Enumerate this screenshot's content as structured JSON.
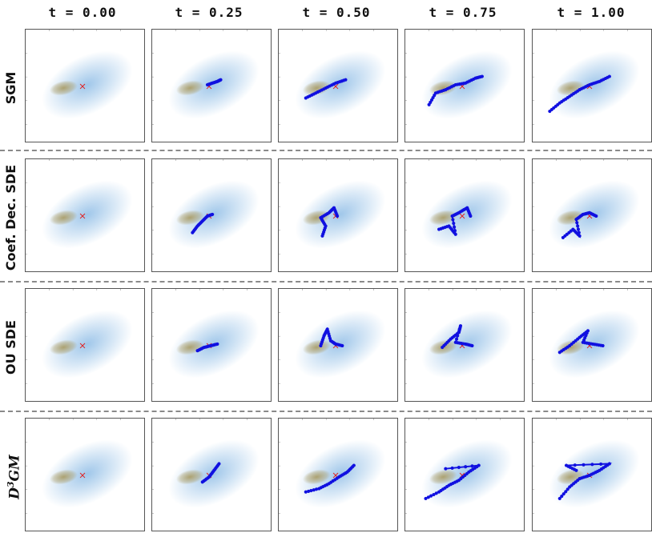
{
  "column_titles": [
    "t = 0.00",
    "t = 0.25",
    "t = 0.50",
    "t = 0.75",
    "t = 1.00"
  ],
  "row_labels": [
    "SGM",
    "Coef. Dec. SDE",
    "OU SDE"
  ],
  "last_row_label": {
    "base": "D",
    "sup": "3",
    "rest": "GM"
  },
  "colors": {
    "background_blob": "#8fbde6",
    "target_blob": "#a89a62",
    "trajectory": "#1010e0",
    "marker": "#e02020"
  },
  "rows": [
    {
      "name": "SGM",
      "paths": [
        [],
        [
          [
            -0.05,
            0.05
          ],
          [
            0.1,
            0.1
          ],
          [
            0.25,
            0.15
          ],
          [
            0.35,
            0.2
          ]
        ],
        [
          [
            -0.9,
            -0.35
          ],
          [
            -0.6,
            -0.2
          ],
          [
            -0.3,
            -0.05
          ],
          [
            0.0,
            0.1
          ],
          [
            0.3,
            0.2
          ]
        ],
        [
          [
            -1.0,
            -0.55
          ],
          [
            -0.8,
            -0.2
          ],
          [
            -0.5,
            -0.1
          ],
          [
            -0.2,
            0.05
          ],
          [
            0.1,
            0.1
          ],
          [
            0.4,
            0.25
          ],
          [
            0.6,
            0.3
          ]
        ],
        [
          [
            -1.2,
            -0.75
          ],
          [
            -0.9,
            -0.5
          ],
          [
            -0.6,
            -0.3
          ],
          [
            -0.3,
            -0.1
          ],
          [
            0.0,
            0.05
          ],
          [
            0.3,
            0.15
          ],
          [
            0.6,
            0.3
          ]
        ]
      ]
    },
    {
      "name": "Coef. Dec. SDE",
      "paths": [
        [],
        [
          [
            -0.5,
            -0.5
          ],
          [
            -0.35,
            -0.3
          ],
          [
            -0.2,
            -0.15
          ],
          [
            -0.05,
            0.0
          ],
          [
            0.1,
            0.05
          ]
        ],
        [
          [
            -0.4,
            -0.6
          ],
          [
            -0.3,
            -0.3
          ],
          [
            -0.45,
            -0.05
          ],
          [
            -0.2,
            0.1
          ],
          [
            -0.05,
            0.25
          ],
          [
            0.05,
            0.0
          ]
        ],
        [
          [
            -0.7,
            -0.4
          ],
          [
            -0.4,
            -0.3
          ],
          [
            -0.2,
            -0.55
          ],
          [
            -0.3,
            0.0
          ],
          [
            -0.1,
            0.1
          ],
          [
            0.15,
            0.25
          ],
          [
            0.25,
            0.0
          ]
        ],
        [
          [
            -0.8,
            -0.65
          ],
          [
            -0.5,
            -0.4
          ],
          [
            -0.3,
            -0.6
          ],
          [
            -0.4,
            -0.1
          ],
          [
            -0.2,
            0.05
          ],
          [
            0.0,
            0.1
          ],
          [
            0.2,
            0.0
          ]
        ]
      ]
    },
    {
      "name": "OU SDE",
      "paths": [
        [],
        [
          [
            -0.35,
            -0.15
          ],
          [
            -0.15,
            -0.05
          ],
          [
            0.05,
            0.0
          ],
          [
            0.25,
            0.05
          ]
        ],
        [
          [
            -0.45,
            0.0
          ],
          [
            -0.35,
            0.3
          ],
          [
            -0.25,
            0.5
          ],
          [
            -0.15,
            0.15
          ],
          [
            0.0,
            0.05
          ],
          [
            0.2,
            0.0
          ]
        ],
        [
          [
            -0.6,
            -0.05
          ],
          [
            -0.35,
            0.2
          ],
          [
            -0.1,
            0.4
          ],
          [
            -0.05,
            0.6
          ],
          [
            -0.2,
            0.1
          ],
          [
            0.1,
            0.05
          ],
          [
            0.3,
            0.0
          ]
        ],
        [
          [
            -0.9,
            -0.2
          ],
          [
            -0.6,
            0.0
          ],
          [
            -0.3,
            0.25
          ],
          [
            -0.05,
            0.45
          ],
          [
            -0.2,
            0.1
          ],
          [
            0.1,
            0.05
          ],
          [
            0.4,
            0.0
          ]
        ]
      ]
    },
    {
      "name": "D3GM",
      "paths": [
        [],
        [
          [
            -0.2,
            -0.2
          ],
          [
            0.0,
            -0.05
          ],
          [
            0.15,
            0.15
          ],
          [
            0.3,
            0.35
          ]
        ],
        [
          [
            -0.9,
            -0.5
          ],
          [
            -0.5,
            -0.4
          ],
          [
            -0.2,
            -0.25
          ],
          [
            0.1,
            -0.05
          ],
          [
            0.35,
            0.1
          ],
          [
            0.55,
            0.3
          ]
        ],
        [
          [
            -1.1,
            -0.7
          ],
          [
            -0.7,
            -0.5
          ],
          [
            -0.4,
            -0.3
          ],
          [
            -0.1,
            -0.15
          ],
          [
            0.2,
            0.1
          ],
          [
            0.5,
            0.3
          ],
          [
            -0.5,
            0.2
          ]
        ],
        [
          [
            -0.9,
            -0.7
          ],
          [
            -0.6,
            -0.35
          ],
          [
            -0.3,
            -0.1
          ],
          [
            0.0,
            0.0
          ],
          [
            0.3,
            0.15
          ],
          [
            0.6,
            0.35
          ],
          [
            -0.7,
            0.3
          ],
          [
            -0.4,
            0.15
          ]
        ]
      ]
    }
  ]
}
